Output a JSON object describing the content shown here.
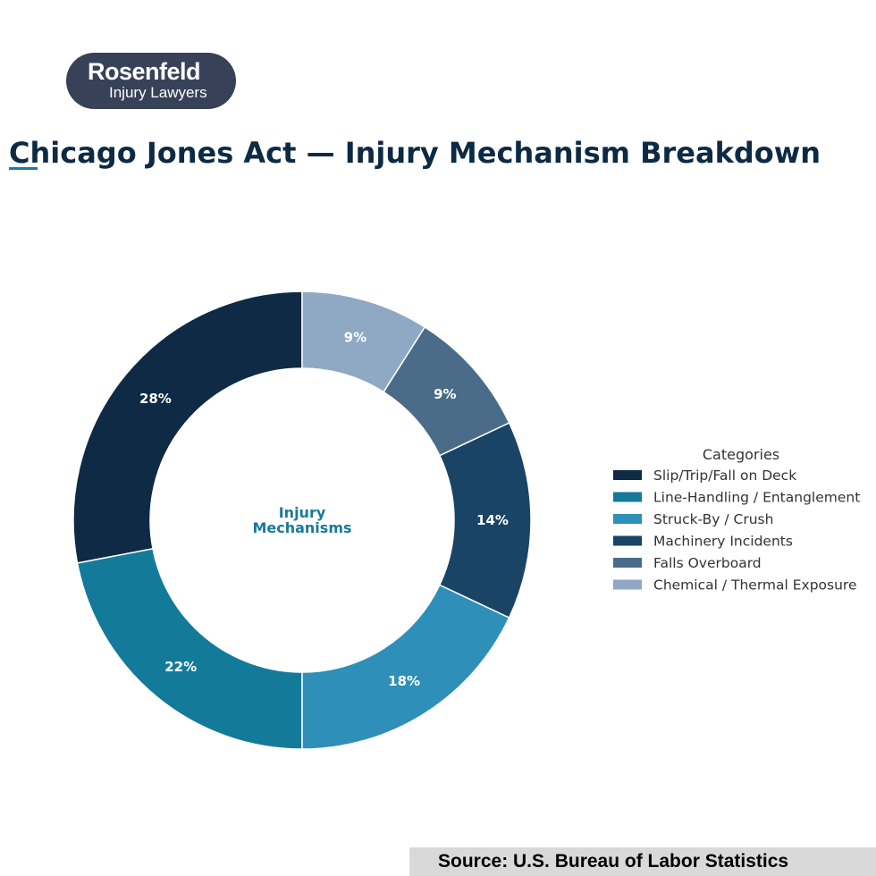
{
  "logo": {
    "name": "Rosenfeld",
    "tagline": "Injury Lawyers"
  },
  "title": "Chicago Jones Act — Injury Mechanism Breakdown",
  "source": "Source: U.S. Bureau of Labor Statistics",
  "chart_data": {
    "type": "pie",
    "style": "donut",
    "center_label": [
      "Injury",
      "Mechanisms"
    ],
    "legend_title": "Categories",
    "legend_position": "right",
    "categories": [
      "Slip/Trip/Fall on Deck",
      "Line-Handling / Entanglement",
      "Struck-By / Crush",
      "Machinery Incidents",
      "Falls Overboard",
      "Chemical / Thermal Exposure"
    ],
    "values": [
      28,
      22,
      18,
      14,
      9,
      9
    ],
    "data_labels": [
      "28%",
      "22%",
      "18%",
      "14%",
      "9%",
      "9%"
    ],
    "colors": [
      "#0e2a45",
      "#147a99",
      "#2e8fb8",
      "#1a4465",
      "#4a6c89",
      "#8fa8c3"
    ],
    "start": "top",
    "direction": "counterclockwise"
  }
}
